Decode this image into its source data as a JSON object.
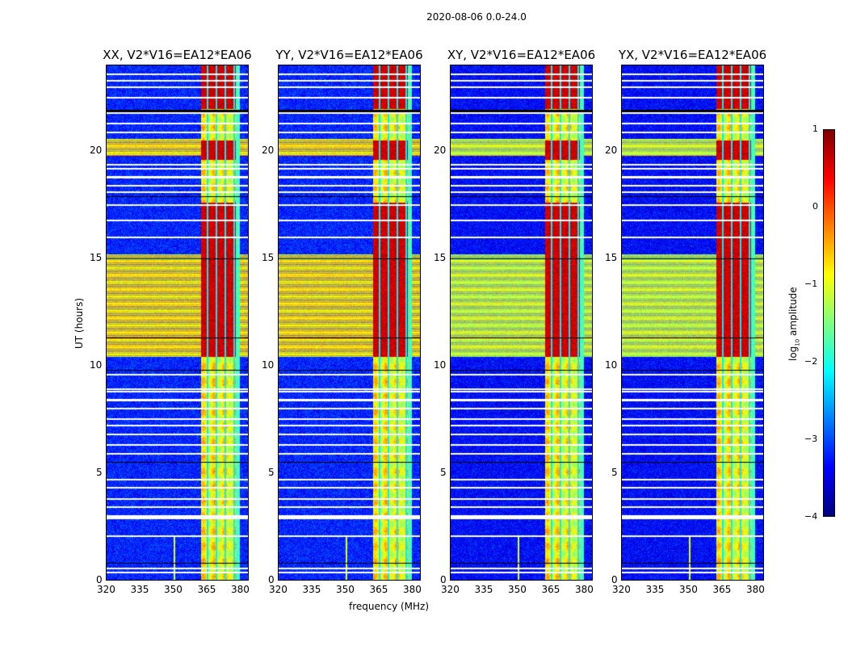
{
  "chart_data": {
    "type": "heatmap",
    "title": "2020-08-06 0.0-24.0",
    "panels": [
      {
        "title": "XX, V2*V16=EA12*EA06"
      },
      {
        "title": "YY, V2*V16=EA12*EA06"
      },
      {
        "title": "XY, V2*V16=EA12*EA06"
      },
      {
        "title": "YX, V2*V16=EA12*EA06"
      }
    ],
    "xlabel": "frequency (MHz)",
    "ylabel": "UT (hours)",
    "xlim": [
      320,
      384
    ],
    "ylim": [
      0,
      24
    ],
    "xticks": [
      "320",
      "335",
      "350",
      "365",
      "380"
    ],
    "xtick_values": [
      320,
      335,
      350,
      365,
      380
    ],
    "yticks": [
      "0",
      "5",
      "10",
      "15",
      "20"
    ],
    "ytick_values": [
      0,
      5,
      10,
      15,
      20
    ],
    "colorbar": {
      "label": "log10 amplitude",
      "label_main": "log",
      "label_sub": "10",
      "label_rest": " amplitude",
      "range": [
        -4,
        1
      ],
      "ticks": [
        "1",
        "0",
        "−1",
        "−2",
        "−3",
        "−4"
      ],
      "tick_values": [
        1,
        0,
        -1,
        -2,
        -3,
        -4
      ],
      "colormap": "jet"
    },
    "features": {
      "background_level": -3.2,
      "rfi_band_mhz": [
        362.5,
        378.5
      ],
      "rfi_band_level": -0.9,
      "strong_rfi_hours": [
        [
          10.4,
          17.6
        ],
        [
          19.6,
          20.5
        ],
        [
          22.0,
          24.0
        ]
      ],
      "strong_rfi_level": 0.6,
      "broadband_hours": [
        [
          10.4,
          15.2
        ],
        [
          19.8,
          20.6
        ]
      ],
      "flagged_hours": [
        0.35,
        0.55,
        2.05,
        2.9,
        3.0,
        3.4,
        3.8,
        4.3,
        4.7,
        5.9,
        6.3,
        6.8,
        7.2,
        7.5,
        8.0,
        8.4,
        8.8,
        8.9,
        9.6,
        16.0,
        16.8,
        17.5,
        18.1,
        18.4,
        18.8,
        19.2,
        19.4,
        20.9,
        21.3,
        21.8,
        22.5,
        23.0,
        23.3,
        23.6
      ]
    }
  }
}
